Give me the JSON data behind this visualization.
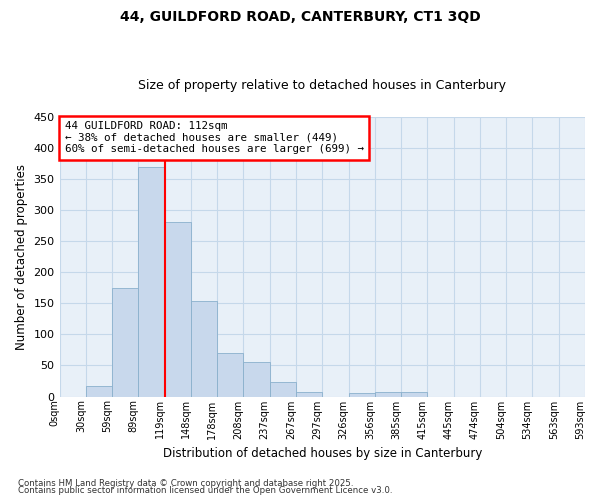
{
  "title1": "44, GUILDFORD ROAD, CANTERBURY, CT1 3QD",
  "title2": "Size of property relative to detached houses in Canterbury",
  "xlabel": "Distribution of detached houses by size in Canterbury",
  "ylabel": "Number of detached properties",
  "annotation_title": "44 GUILDFORD ROAD: 112sqm",
  "annotation_line2": "← 38% of detached houses are smaller (449)",
  "annotation_line3": "60% of semi-detached houses are larger (699) →",
  "footer1": "Contains HM Land Registry data © Crown copyright and database right 2025.",
  "footer2": "Contains public sector information licensed under the Open Government Licence v3.0.",
  "bar_values": [
    0,
    17,
    175,
    370,
    280,
    153,
    70,
    55,
    23,
    8,
    0,
    5,
    7,
    8,
    0,
    0,
    0,
    0,
    0,
    0
  ],
  "bin_edges": [
    0,
    30,
    59,
    89,
    119,
    148,
    178,
    208,
    237,
    267,
    297,
    326,
    356,
    385,
    415,
    445,
    474,
    504,
    534,
    563,
    593
  ],
  "bin_labels": [
    "0sqm",
    "30sqm",
    "59sqm",
    "89sqm",
    "119sqm",
    "148sqm",
    "178sqm",
    "208sqm",
    "237sqm",
    "267sqm",
    "297sqm",
    "326sqm",
    "356sqm",
    "385sqm",
    "415sqm",
    "445sqm",
    "474sqm",
    "504sqm",
    "534sqm",
    "563sqm",
    "593sqm"
  ],
  "bar_color": "#c8d8ec",
  "bar_edge_color": "#8ab0cc",
  "vline_x": 4,
  "vline_color": "red",
  "annotation_box_color": "red",
  "grid_color": "#c5d8ea",
  "bg_color": "#e8f0f8",
  "ylim": [
    0,
    450
  ],
  "yticks": [
    0,
    50,
    100,
    150,
    200,
    250,
    300,
    350,
    400,
    450
  ]
}
